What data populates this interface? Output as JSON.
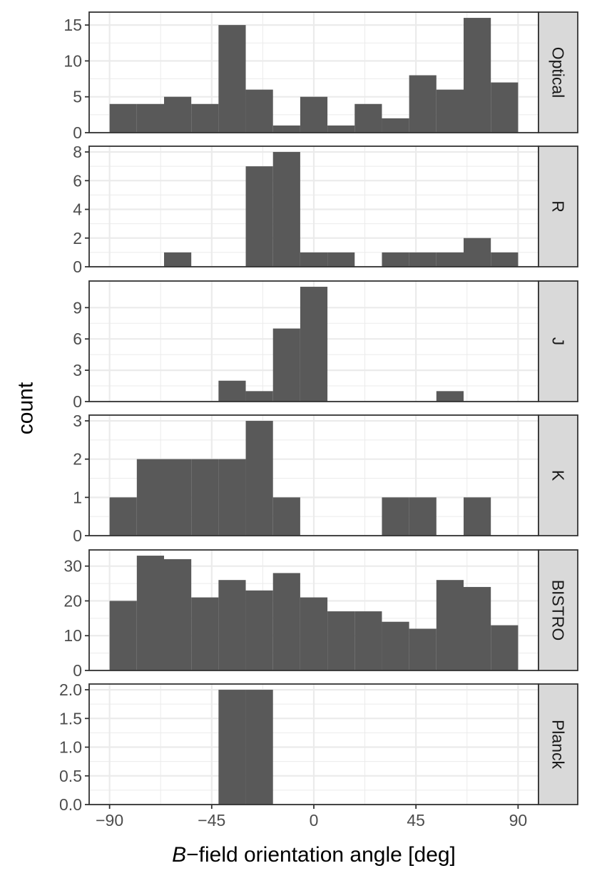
{
  "chart_data": {
    "type": "bar",
    "subtype": "faceted histogram",
    "xlabel": {
      "italic": "B",
      "rest": "−field orientation angle [deg]"
    },
    "ylabel": "count",
    "xlim": [
      -99,
      99
    ],
    "xticks": [
      -90,
      -45,
      0,
      45,
      90
    ],
    "xtick_labels": [
      "−90",
      "−45",
      "0",
      "45",
      "90"
    ],
    "bin_edges": [
      -90,
      -78,
      -66,
      -54,
      -42,
      -30,
      -18,
      -6,
      6,
      18,
      30,
      42,
      54,
      66,
      78,
      90
    ],
    "grid": true,
    "colors": {
      "bar": "#595959",
      "strip": "#d9d9d9",
      "grid": "#ebebeb",
      "border": "#333333"
    },
    "panels": [
      {
        "name": "Optical",
        "ylim": [
          0,
          16.8
        ],
        "yticks": [
          0,
          5,
          10,
          15
        ],
        "counts": [
          4,
          4,
          5,
          4,
          15,
          6,
          1,
          5,
          1,
          4,
          2,
          8,
          6,
          16,
          7
        ]
      },
      {
        "name": "R",
        "ylim": [
          0,
          8.4
        ],
        "yticks": [
          0,
          2,
          4,
          6,
          8
        ],
        "counts": [
          0,
          0,
          1,
          0,
          0,
          7,
          8,
          1,
          1,
          0,
          1,
          1,
          1,
          2,
          1
        ]
      },
      {
        "name": "J",
        "ylim": [
          0,
          11.55
        ],
        "yticks": [
          0,
          3,
          6,
          9
        ],
        "counts": [
          0,
          0,
          0,
          0,
          2,
          1,
          7,
          11,
          0,
          0,
          0,
          0,
          1,
          0,
          0
        ]
      },
      {
        "name": "K",
        "ylim": [
          0,
          3.15
        ],
        "yticks": [
          0,
          1,
          2,
          3
        ],
        "counts": [
          1,
          2,
          2,
          2,
          2,
          3,
          1,
          0,
          0,
          0,
          1,
          1,
          0,
          1,
          0
        ]
      },
      {
        "name": "BISTRO",
        "ylim": [
          0,
          34.65
        ],
        "yticks": [
          0,
          10,
          20,
          30
        ],
        "counts": [
          20,
          33,
          32,
          21,
          26,
          23,
          28,
          21,
          17,
          17,
          14,
          12,
          26,
          24,
          13
        ]
      },
      {
        "name": "Planck",
        "ylim": [
          0,
          2.1
        ],
        "yticks": [
          0,
          0.5,
          1,
          1.5,
          2
        ],
        "ytick_labels": [
          "0.0",
          "0.5",
          "1.0",
          "1.5",
          "2.0"
        ],
        "counts": [
          0,
          0,
          0,
          0,
          2,
          2,
          0,
          0,
          0,
          0,
          0,
          0,
          0,
          0,
          0
        ]
      }
    ]
  }
}
